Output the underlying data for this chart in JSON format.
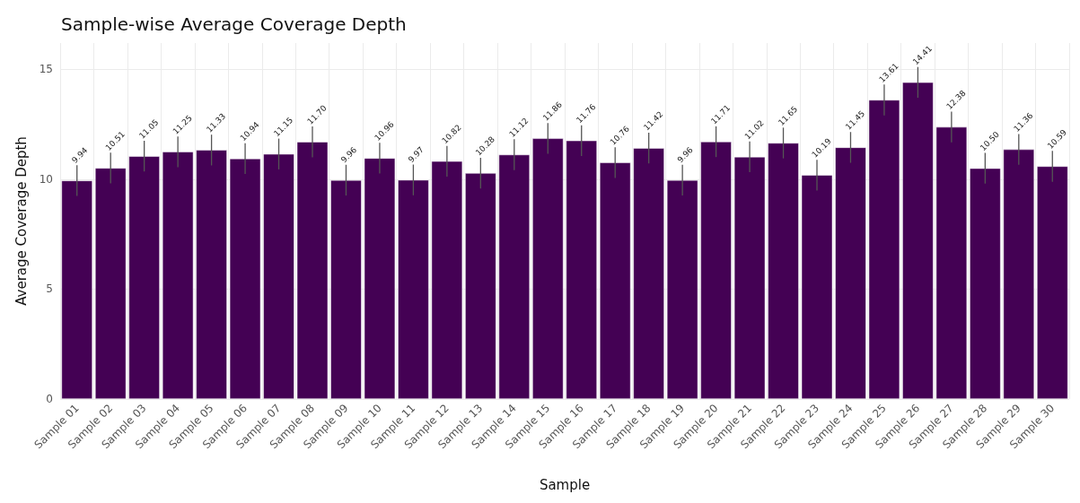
{
  "chart_data": {
    "type": "bar",
    "title": "Sample-wise Average Coverage Depth",
    "xlabel": "Sample",
    "ylabel": "Average Coverage Depth",
    "categories": [
      "Sample 01",
      "Sample 02",
      "Sample 03",
      "Sample 04",
      "Sample 05",
      "Sample 06",
      "Sample 07",
      "Sample 08",
      "Sample 09",
      "Sample 10",
      "Sample 11",
      "Sample 12",
      "Sample 13",
      "Sample 14",
      "Sample 15",
      "Sample 16",
      "Sample 17",
      "Sample 18",
      "Sample 19",
      "Sample 20",
      "Sample 21",
      "Sample 22",
      "Sample 23",
      "Sample 24",
      "Sample 25",
      "Sample 26",
      "Sample 27",
      "Sample 28",
      "Sample 29",
      "Sample 30"
    ],
    "values": [
      9.94,
      10.51,
      11.05,
      11.25,
      11.33,
      10.94,
      11.15,
      11.7,
      9.96,
      10.96,
      9.97,
      10.82,
      10.28,
      11.12,
      11.86,
      11.76,
      10.76,
      11.42,
      9.96,
      11.71,
      11.02,
      11.65,
      10.19,
      11.45,
      13.61,
      14.41,
      12.38,
      10.5,
      11.36,
      10.59
    ],
    "errors": [
      0.7,
      0.7,
      0.7,
      0.7,
      0.7,
      0.7,
      0.7,
      0.7,
      0.7,
      0.7,
      0.7,
      0.7,
      0.7,
      0.7,
      0.7,
      0.7,
      0.7,
      0.7,
      0.7,
      0.7,
      0.7,
      0.7,
      0.7,
      0.7,
      0.7,
      0.7,
      0.7,
      0.7,
      0.7,
      0.7
    ],
    "value_labels": [
      "9.94",
      "10.51",
      "11.05",
      "11.25",
      "11.33",
      "10.94",
      "11.15",
      "11.70",
      "9.96",
      "10.96",
      "9.97",
      "10.82",
      "10.28",
      "11.12",
      "11.86",
      "11.76",
      "10.76",
      "11.42",
      "9.96",
      "11.71",
      "11.02",
      "11.65",
      "10.19",
      "11.45",
      "13.61",
      "14.41",
      "12.38",
      "10.50",
      "11.36",
      "10.59"
    ],
    "color": "#440154",
    "ylim": [
      0,
      16.2
    ],
    "yticks": [
      0,
      5,
      10,
      15
    ],
    "grid": true
  }
}
